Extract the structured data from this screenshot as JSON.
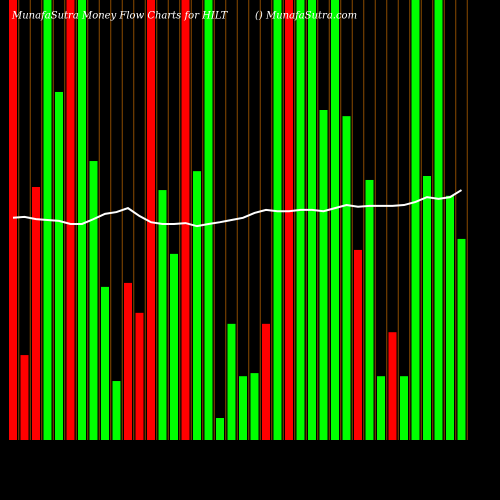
{
  "chart_data": {
    "type": "bar",
    "title": "MunafaSutra Money Flow Charts for HILT",
    "subtitle": "() MunafaSutra.com",
    "values": [
      100,
      19.3,
      57.5,
      100,
      79.1,
      100,
      100,
      63.4,
      34.8,
      13.4,
      35.7,
      28.9,
      100,
      56.8,
      42.3,
      100,
      61.1,
      100,
      5,
      26.4,
      14.5,
      15.2,
      26.4,
      100,
      100,
      100,
      100,
      75,
      100,
      73.6,
      43.2,
      59.1,
      14.5,
      24.5,
      14.5,
      100,
      60,
      100,
      55.5,
      45.7
    ],
    "bar_colors": [
      "#ff0000",
      "#ff0000",
      "#ff0000",
      "#00ff00",
      "#00ff00",
      "#ff0000",
      "#00ff00",
      "#00ff00",
      "#00ff00",
      "#00ff00",
      "#ff0000",
      "#ff0000",
      "#ff0000",
      "#00ff00",
      "#00ff00",
      "#ff0000",
      "#00ff00",
      "#00ff00",
      "#00ff00",
      "#00ff00",
      "#00ff00",
      "#00ff00",
      "#ff0000",
      "#00ff00",
      "#ff0000",
      "#00ff00",
      "#00ff00",
      "#00ff00",
      "#00ff00",
      "#00ff00",
      "#ff0000",
      "#00ff00",
      "#00ff00",
      "#ff0000",
      "#00ff00",
      "#00ff00",
      "#00ff00",
      "#00ff00",
      "#00ff00",
      "#00ff00"
    ],
    "line": {
      "color": "#ffffff",
      "values": [
        50.5,
        50.7,
        50.2,
        50,
        49.8,
        49.1,
        49.1,
        50.2,
        51.4,
        51.8,
        52.7,
        50.9,
        49.5,
        49.1,
        49.1,
        49.3,
        48.6,
        49.1,
        49.5,
        50,
        50.5,
        51.6,
        52.3,
        52,
        52,
        52.3,
        52.3,
        52,
        52.7,
        53.4,
        53,
        53.2,
        53.2,
        53.2,
        53.4,
        54.1,
        55.2,
        54.8,
        55.2,
        56.8
      ]
    },
    "ylim": [
      0,
      100
    ]
  }
}
